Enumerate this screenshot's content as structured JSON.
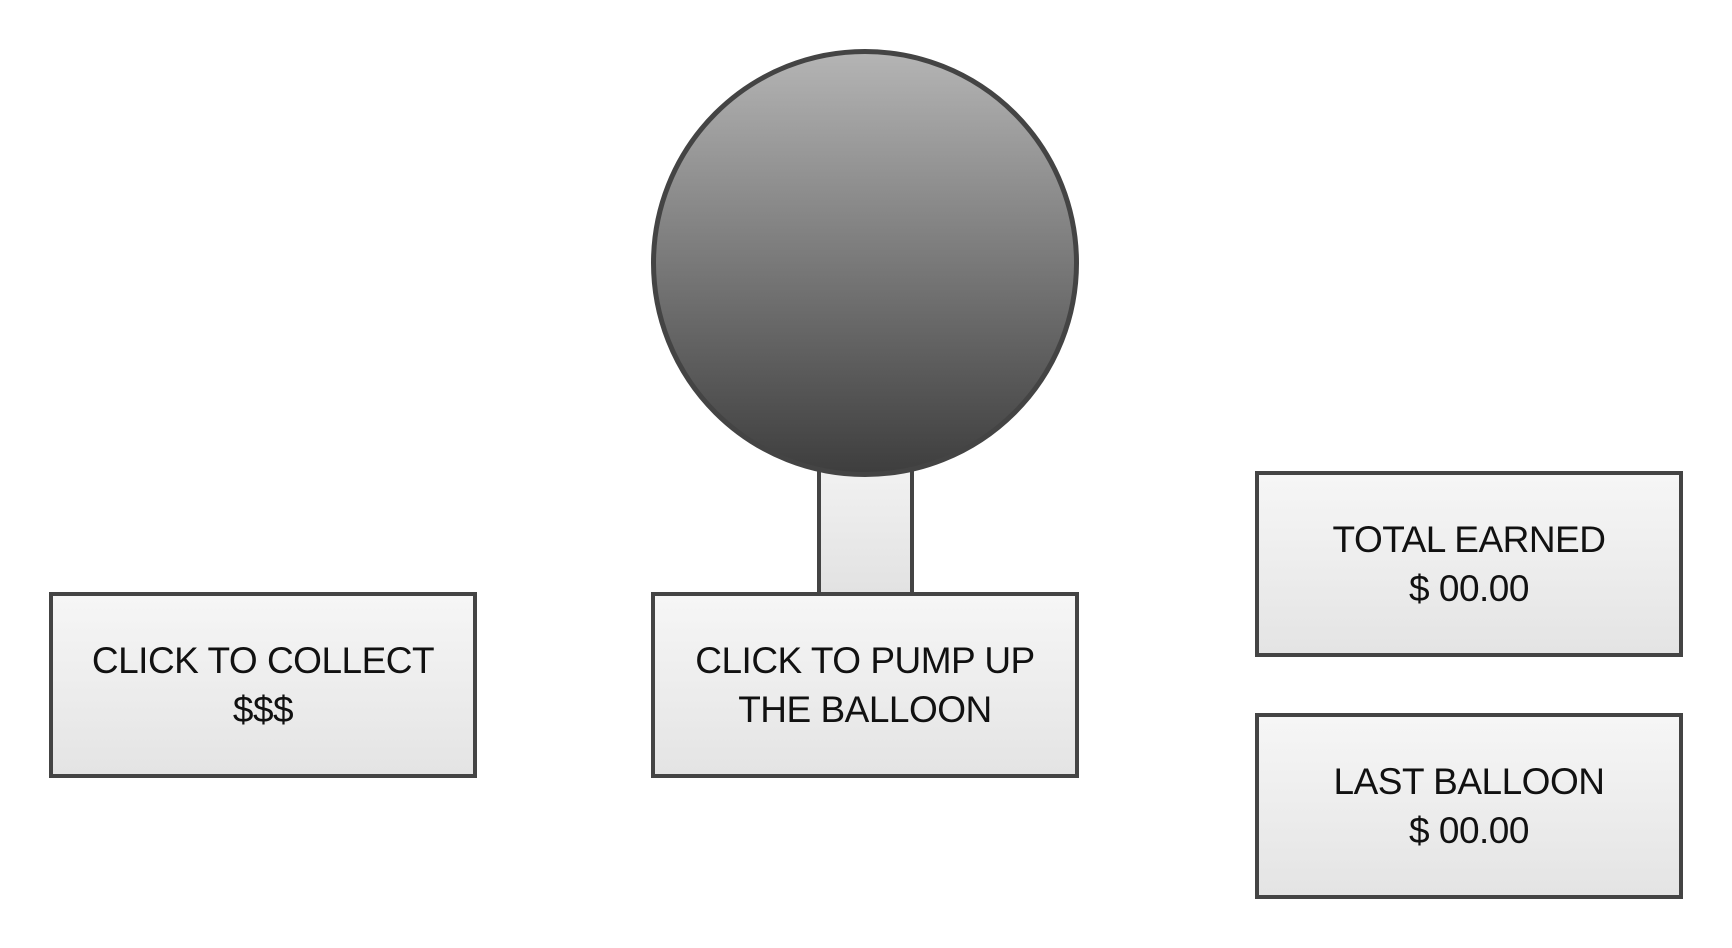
{
  "collect": {
    "line1": "CLICK TO COLLECT",
    "line2": "$$$"
  },
  "pump": {
    "line1": "CLICK TO PUMP UP",
    "line2": "THE BALLOON"
  },
  "total_earned": {
    "label": "TOTAL EARNED",
    "value": "$ 00.00"
  },
  "last_balloon": {
    "label": "LAST BALLOON",
    "value": "$ 00.00"
  },
  "colors": {
    "border": "#444444",
    "balloon_top": "#b4b4b4",
    "balloon_bottom": "#3e3e3e",
    "button_face": "#f0f0f0"
  }
}
